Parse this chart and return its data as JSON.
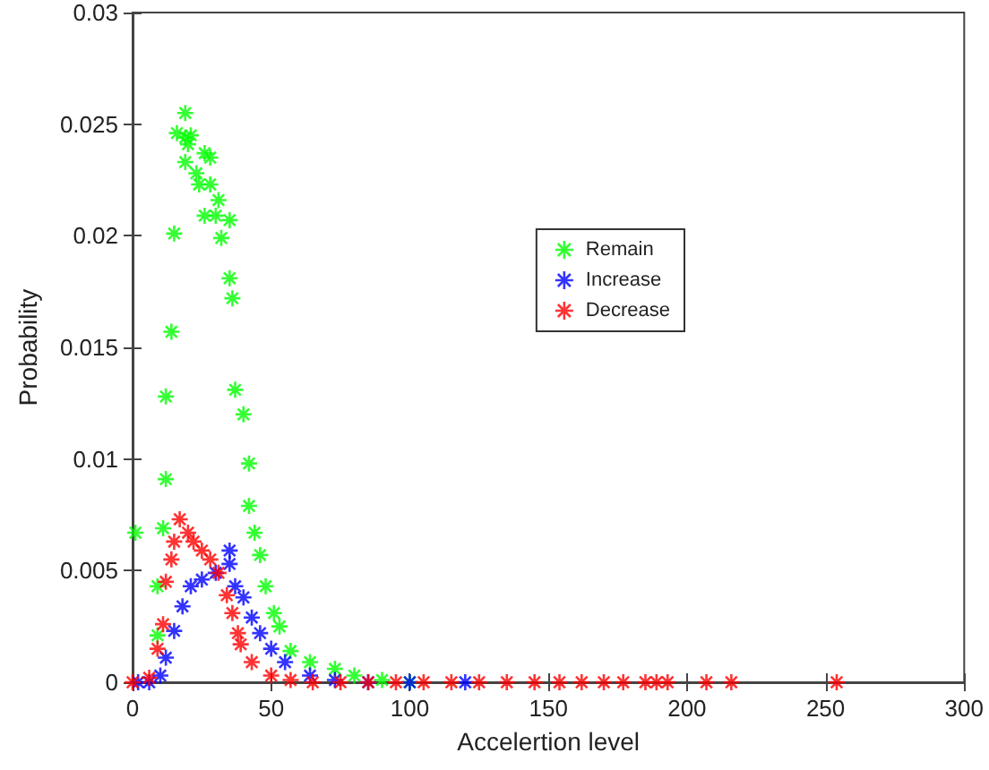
{
  "chart_data": {
    "type": "scatter",
    "xlabel": "Accelertion level",
    "ylabel": "Probability",
    "xlim": [
      0,
      300
    ],
    "xticks": [
      0,
      50,
      100,
      150,
      200,
      250,
      300
    ],
    "ylim": [
      0,
      0.03
    ],
    "yticks": [
      0,
      0.005,
      0.01,
      0.015,
      0.02,
      0.025,
      0.03
    ],
    "grid": false,
    "legend": "top right",
    "marker": "cross",
    "series": [
      {
        "name": "Remain",
        "color": "#00ff00",
        "x": [
          1,
          9,
          9,
          11,
          12,
          12,
          14,
          15,
          16,
          19,
          19,
          19,
          20,
          21,
          23,
          24,
          26,
          26,
          28,
          28,
          30,
          31,
          32,
          35,
          35,
          36,
          37,
          40,
          42,
          42,
          44,
          46,
          48,
          51,
          53,
          57,
          64,
          73,
          80,
          90,
          100
        ],
        "values": [
          0.0067,
          0.0021,
          0.0043,
          0.0069,
          0.0091,
          0.0128,
          0.0157,
          0.0201,
          0.0246,
          0.0233,
          0.0244,
          0.0255,
          0.0241,
          0.0245,
          0.0228,
          0.0223,
          0.0209,
          0.0237,
          0.0223,
          0.0235,
          0.0209,
          0.0216,
          0.0199,
          0.0207,
          0.0181,
          0.0172,
          0.0131,
          0.012,
          0.0098,
          0.0079,
          0.0067,
          0.0057,
          0.0043,
          0.0031,
          0.0025,
          0.0014,
          0.0009,
          0.0006,
          0.0003,
          0.0001,
          0
        ]
      },
      {
        "name": "Increase",
        "color": "#0000ff",
        "x": [
          2,
          6,
          10,
          12,
          15,
          18,
          21,
          25,
          30,
          35,
          35,
          37,
          40,
          43,
          46,
          50,
          55,
          64,
          73,
          85,
          100,
          120
        ],
        "values": [
          0,
          0,
          0.0003,
          0.0011,
          0.0023,
          0.0034,
          0.0043,
          0.0046,
          0.0049,
          0.0053,
          0.0059,
          0.0043,
          0.0038,
          0.0029,
          0.0022,
          0.0015,
          0.0009,
          0.0003,
          0.0001,
          0,
          0,
          0
        ]
      },
      {
        "name": "Decrease",
        "color": "#ff0000",
        "x": [
          0,
          6,
          9,
          11,
          12,
          14,
          15,
          17,
          20,
          22,
          25,
          28,
          31,
          34,
          36,
          38,
          39,
          43,
          50,
          57,
          65,
          75,
          85,
          95,
          105,
          115,
          125,
          135,
          145,
          154,
          162,
          170,
          177,
          185,
          189,
          193,
          207,
          216,
          254
        ],
        "values": [
          0,
          0.0002,
          0.0015,
          0.0026,
          0.0045,
          0.0055,
          0.0063,
          0.0073,
          0.0067,
          0.0063,
          0.0059,
          0.0055,
          0.0049,
          0.0039,
          0.0031,
          0.0022,
          0.0017,
          0.0009,
          0.0003,
          0.0001,
          0,
          0,
          0,
          0,
          0,
          0,
          0,
          0,
          0,
          0,
          0,
          0,
          0,
          0,
          0,
          0,
          0,
          0,
          0
        ]
      }
    ]
  }
}
